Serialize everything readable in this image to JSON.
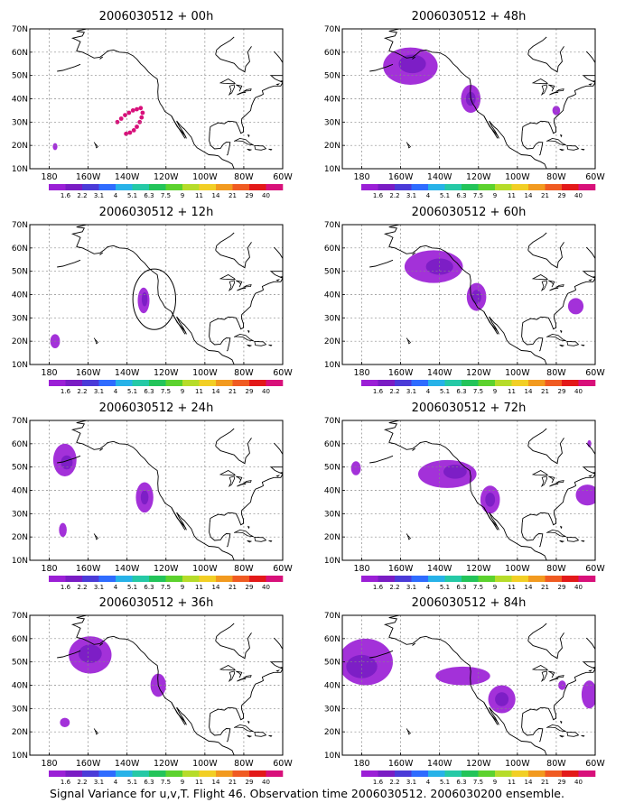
{
  "figure": {
    "caption": "Signal Variance for u,v,T. Flight 46. Observation time 2006030512. 2006030200 ensemble."
  },
  "colors": {
    "frame": "#000000",
    "grid": "#888888",
    "coast": "#000000",
    "colorbar": [
      "#9b1fd6",
      "#7a1cc4",
      "#4b3bd8",
      "#2f6cff",
      "#27b2e8",
      "#25c9a6",
      "#23c45a",
      "#5cd22e",
      "#b6dc2a",
      "#f2cf25",
      "#f29a1f",
      "#f05b22",
      "#e31919",
      "#d8107a"
    ]
  },
  "chart_data": [
    {
      "type": "heatmap",
      "title": "2006030512 + 00h",
      "lon_range": [
        -190,
        -60
      ],
      "lat_range": [
        10,
        70
      ],
      "x_ticks": [
        "180",
        "160W",
        "140W",
        "120W",
        "100W",
        "80W",
        "60W"
      ],
      "y_ticks": [
        "10N",
        "20N",
        "30N",
        "40N",
        "50N",
        "60N",
        "70N"
      ],
      "colorbar_levels": [
        "1.6",
        "2.2",
        "3.1",
        "4",
        "5.1",
        "6.3",
        "7.5",
        "9",
        "11",
        "14",
        "21",
        "29",
        "40"
      ],
      "grid": true,
      "blobs": [
        {
          "lon": -177,
          "lat": 19.5,
          "rlon": 1.2,
          "rlat": 1.5,
          "color": "#9b1fd6"
        }
      ],
      "dots": [
        {
          "lon": -145,
          "lat": 30
        },
        {
          "lon": -143,
          "lat": 31.5
        },
        {
          "lon": -141,
          "lat": 33
        },
        {
          "lon": -139,
          "lat": 34
        },
        {
          "lon": -137,
          "lat": 35
        },
        {
          "lon": -135,
          "lat": 35.5
        },
        {
          "lon": -133,
          "lat": 36
        },
        {
          "lon": -132,
          "lat": 34
        },
        {
          "lon": -132.5,
          "lat": 32
        },
        {
          "lon": -133.5,
          "lat": 30
        },
        {
          "lon": -135,
          "lat": 28
        },
        {
          "lon": -136.5,
          "lat": 26.5
        },
        {
          "lon": -138.5,
          "lat": 25.5
        },
        {
          "lon": -140.5,
          "lat": 25
        }
      ],
      "track_circle": null
    },
    {
      "type": "heatmap",
      "title": "2006030512 + 12h",
      "lon_range": [
        -190,
        -60
      ],
      "lat_range": [
        10,
        70
      ],
      "x_ticks": [
        "180",
        "160W",
        "140W",
        "120W",
        "100W",
        "80W",
        "60W"
      ],
      "y_ticks": [
        "10N",
        "20N",
        "30N",
        "40N",
        "50N",
        "60N",
        "70N"
      ],
      "colorbar_levels": [
        "1.6",
        "2.2",
        "3.1",
        "4",
        "5.1",
        "6.3",
        "7.5",
        "9",
        "11",
        "14",
        "21",
        "29",
        "40"
      ],
      "grid": true,
      "blobs": [
        {
          "lon": -177,
          "lat": 20,
          "rlon": 2.5,
          "rlat": 3,
          "color": "#9b1fd6"
        },
        {
          "lon": -131.5,
          "lat": 37.5,
          "rlon": 3,
          "rlat": 5.5,
          "color": "#9b1fd6"
        },
        {
          "lon": -131,
          "lat": 38,
          "rlon": 1.5,
          "rlat": 3,
          "color": "#7a1cc4"
        }
      ],
      "dots": [],
      "track_circle": {
        "lon": -126,
        "lat": 38,
        "rlon": 11,
        "rlat": 13
      }
    },
    {
      "type": "heatmap",
      "title": "2006030512 + 24h",
      "lon_range": [
        -190,
        -60
      ],
      "lat_range": [
        10,
        70
      ],
      "x_ticks": [
        "180",
        "160W",
        "140W",
        "120W",
        "100W",
        "80W",
        "60W"
      ],
      "y_ticks": [
        "10N",
        "20N",
        "30N",
        "40N",
        "50N",
        "60N",
        "70N"
      ],
      "colorbar_levels": [
        "1.6",
        "2.2",
        "3.1",
        "4",
        "5.1",
        "6.3",
        "7.5",
        "9",
        "11",
        "14",
        "21",
        "29",
        "40"
      ],
      "grid": true,
      "blobs": [
        {
          "lon": -172,
          "lat": 53,
          "rlon": 6,
          "rlat": 7,
          "color": "#9b1fd6"
        },
        {
          "lon": -171,
          "lat": 52,
          "rlon": 3,
          "rlat": 3,
          "color": "#7a1cc4"
        },
        {
          "lon": -173,
          "lat": 23,
          "rlon": 2,
          "rlat": 3,
          "color": "#9b1fd6"
        },
        {
          "lon": -131,
          "lat": 37,
          "rlon": 4.5,
          "rlat": 6.5,
          "color": "#9b1fd6"
        },
        {
          "lon": -131,
          "lat": 37,
          "rlon": 2,
          "rlat": 3,
          "color": "#7a1cc4"
        }
      ],
      "dots": [],
      "track_circle": null
    },
    {
      "type": "heatmap",
      "title": "2006030512 + 36h",
      "lon_range": [
        -190,
        -60
      ],
      "lat_range": [
        10,
        70
      ],
      "x_ticks": [
        "180",
        "160W",
        "140W",
        "120W",
        "100W",
        "80W",
        "60W"
      ],
      "y_ticks": [
        "10N",
        "20N",
        "30N",
        "40N",
        "50N",
        "60N",
        "70N"
      ],
      "colorbar_levels": [
        "1.6",
        "2.2",
        "3.1",
        "4",
        "5.1",
        "6.3",
        "7.5",
        "9",
        "11",
        "14",
        "21",
        "29",
        "40"
      ],
      "grid": true,
      "blobs": [
        {
          "lon": -159,
          "lat": 53,
          "rlon": 11,
          "rlat": 8,
          "color": "#9b1fd6"
        },
        {
          "lon": -159,
          "lat": 53.5,
          "rlon": 6,
          "rlat": 4,
          "color": "#7a1cc4"
        },
        {
          "lon": -124,
          "lat": 40,
          "rlon": 4,
          "rlat": 5,
          "color": "#9b1fd6"
        },
        {
          "lon": -172,
          "lat": 24,
          "rlon": 2.5,
          "rlat": 2,
          "color": "#9b1fd6"
        }
      ],
      "dots": [],
      "track_circle": null
    },
    {
      "type": "heatmap",
      "title": "2006030512 + 48h",
      "lon_range": [
        -190,
        -60
      ],
      "lat_range": [
        10,
        70
      ],
      "x_ticks": [
        "180",
        "160W",
        "140W",
        "120W",
        "100W",
        "80W",
        "60W"
      ],
      "y_ticks": [
        "10N",
        "20N",
        "30N",
        "40N",
        "50N",
        "60N",
        "70N"
      ],
      "colorbar_levels": [
        "1.6",
        "2.2",
        "3.1",
        "4",
        "5.1",
        "6.3",
        "7.5",
        "9",
        "11",
        "14",
        "21",
        "29",
        "40"
      ],
      "grid": true,
      "blobs": [
        {
          "lon": -155,
          "lat": 54,
          "rlon": 14,
          "rlat": 8,
          "color": "#9b1fd6"
        },
        {
          "lon": -154,
          "lat": 55,
          "rlon": 7,
          "rlat": 4,
          "color": "#7a1cc4"
        },
        {
          "lon": -124,
          "lat": 40,
          "rlon": 5,
          "rlat": 6,
          "color": "#9b1fd6"
        },
        {
          "lon": -124,
          "lat": 40,
          "rlon": 2.5,
          "rlat": 3,
          "color": "#7a1cc4"
        },
        {
          "lon": -80,
          "lat": 35,
          "rlon": 2,
          "rlat": 2,
          "color": "#9b1fd6"
        }
      ],
      "dots": [],
      "track_circle": null
    },
    {
      "type": "heatmap",
      "title": "2006030512 + 60h",
      "lon_range": [
        -190,
        -60
      ],
      "lat_range": [
        10,
        70
      ],
      "x_ticks": [
        "180",
        "160W",
        "140W",
        "120W",
        "100W",
        "80W",
        "60W"
      ],
      "y_ticks": [
        "10N",
        "20N",
        "30N",
        "40N",
        "50N",
        "60N",
        "70N"
      ],
      "colorbar_levels": [
        "1.6",
        "2.2",
        "3.1",
        "4",
        "5.1",
        "6.3",
        "7.5",
        "9",
        "11",
        "14",
        "21",
        "29",
        "40"
      ],
      "grid": true,
      "blobs": [
        {
          "lon": -143,
          "lat": 52,
          "rlon": 15,
          "rlat": 7,
          "color": "#9b1fd6"
        },
        {
          "lon": -140,
          "lat": 52,
          "rlon": 7,
          "rlat": 3.5,
          "color": "#7a1cc4"
        },
        {
          "lon": -121,
          "lat": 39,
          "rlon": 5,
          "rlat": 6,
          "color": "#9b1fd6"
        },
        {
          "lon": -121,
          "lat": 39,
          "rlon": 2.5,
          "rlat": 3,
          "color": "#7a1cc4"
        },
        {
          "lon": -70,
          "lat": 35,
          "rlon": 4,
          "rlat": 3.5,
          "color": "#9b1fd6"
        }
      ],
      "dots": [],
      "track_circle": null
    },
    {
      "type": "heatmap",
      "title": "2006030512 + 72h",
      "lon_range": [
        -190,
        -60
      ],
      "lat_range": [
        10,
        70
      ],
      "x_ticks": [
        "180",
        "160W",
        "140W",
        "120W",
        "100W",
        "80W",
        "60W"
      ],
      "y_ticks": [
        "10N",
        "20N",
        "30N",
        "40N",
        "50N",
        "60N",
        "70N"
      ],
      "colorbar_levels": [
        "1.6",
        "2.2",
        "3.1",
        "4",
        "5.1",
        "6.3",
        "7.5",
        "9",
        "11",
        "14",
        "21",
        "29",
        "40"
      ],
      "grid": true,
      "blobs": [
        {
          "lon": -136,
          "lat": 47,
          "rlon": 15,
          "rlat": 6,
          "color": "#9b1fd6"
        },
        {
          "lon": -132,
          "lat": 48,
          "rlon": 6,
          "rlat": 3,
          "color": "#7a1cc4"
        },
        {
          "lon": -114,
          "lat": 36,
          "rlon": 5,
          "rlat": 6,
          "color": "#9b1fd6"
        },
        {
          "lon": -114,
          "lat": 36,
          "rlon": 2.5,
          "rlat": 3,
          "color": "#7a1cc4"
        },
        {
          "lon": -183,
          "lat": 49.5,
          "rlon": 2.5,
          "rlat": 3,
          "color": "#9b1fd6"
        },
        {
          "lon": -64,
          "lat": 38,
          "rlon": 6,
          "rlat": 4.5,
          "color": "#9b1fd6"
        },
        {
          "lon": -63,
          "lat": 60,
          "rlon": 1,
          "rlat": 1.5,
          "color": "#9b1fd6"
        }
      ],
      "dots": [],
      "track_circle": null
    },
    {
      "type": "heatmap",
      "title": "2006030512 + 84h",
      "lon_range": [
        -190,
        -60
      ],
      "lat_range": [
        10,
        70
      ],
      "x_ticks": [
        "180",
        "160W",
        "140W",
        "120W",
        "100W",
        "80W",
        "60W"
      ],
      "y_ticks": [
        "10N",
        "20N",
        "30N",
        "40N",
        "50N",
        "60N",
        "70N"
      ],
      "colorbar_levels": [
        "1.6",
        "2.2",
        "3.1",
        "4",
        "5.1",
        "6.3",
        "7.5",
        "9",
        "11",
        "14",
        "21",
        "29",
        "40"
      ],
      "grid": true,
      "blobs": [
        {
          "lon": -178,
          "lat": 50,
          "rlon": 14,
          "rlat": 10,
          "color": "#9b1fd6"
        },
        {
          "lon": -180,
          "lat": 48,
          "rlon": 8,
          "rlat": 5,
          "color": "#7a1cc4"
        },
        {
          "lon": -128,
          "lat": 44,
          "rlon": 14,
          "rlat": 4,
          "color": "#9b1fd6"
        },
        {
          "lon": -108,
          "lat": 34,
          "rlon": 7,
          "rlat": 6,
          "color": "#9b1fd6"
        },
        {
          "lon": -108,
          "lat": 34,
          "rlon": 3.5,
          "rlat": 3,
          "color": "#7a1cc4"
        },
        {
          "lon": -77,
          "lat": 40,
          "rlon": 2,
          "rlat": 2,
          "color": "#9b1fd6"
        },
        {
          "lon": -63,
          "lat": 36,
          "rlon": 4,
          "rlat": 6,
          "color": "#9b1fd6"
        }
      ],
      "dots": [],
      "track_circle": null
    }
  ]
}
